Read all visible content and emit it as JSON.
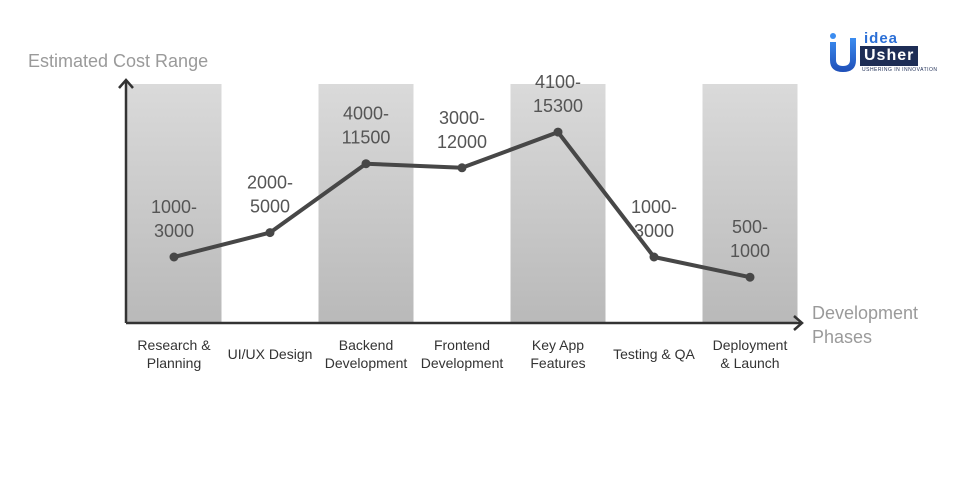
{
  "logo": {
    "top_word": "idea",
    "bottom_word": "Usher",
    "tagline": "USHERING IN INNOVATION"
  },
  "colors": {
    "line": "#474747",
    "band_top": "#dadada",
    "band_bottom": "#b9b9b9",
    "axis": "#333333",
    "axis_title": "#9a9a9a"
  },
  "chart_data": {
    "type": "line",
    "ylabel": "Estimated Cost Range",
    "xlabel_lines": [
      "Development",
      "Phases"
    ],
    "categories": [
      [
        "Research &",
        "Planning"
      ],
      [
        "UI/UX Design"
      ],
      [
        "Backend",
        "Development"
      ],
      [
        "Frontend",
        "Development"
      ],
      [
        "Key App",
        "Features"
      ],
      [
        "Testing & QA"
      ],
      [
        "Deployment",
        "& Launch"
      ]
    ],
    "value_labels": [
      [
        "1000-",
        "3000"
      ],
      [
        "2000-",
        "5000"
      ],
      [
        "4000-",
        "11500"
      ],
      [
        "3000-",
        "12000"
      ],
      [
        "4100-",
        "15300"
      ],
      [
        "1000-",
        "3000"
      ],
      [
        "500-",
        "1000"
      ]
    ],
    "series": [
      {
        "values": [
          2000,
          3500,
          7750,
          7500,
          9700,
          2000,
          750
        ]
      }
    ],
    "shaded_phases": [
      0,
      2,
      4,
      6
    ],
    "y_axis_ticks": false,
    "grid": false
  }
}
